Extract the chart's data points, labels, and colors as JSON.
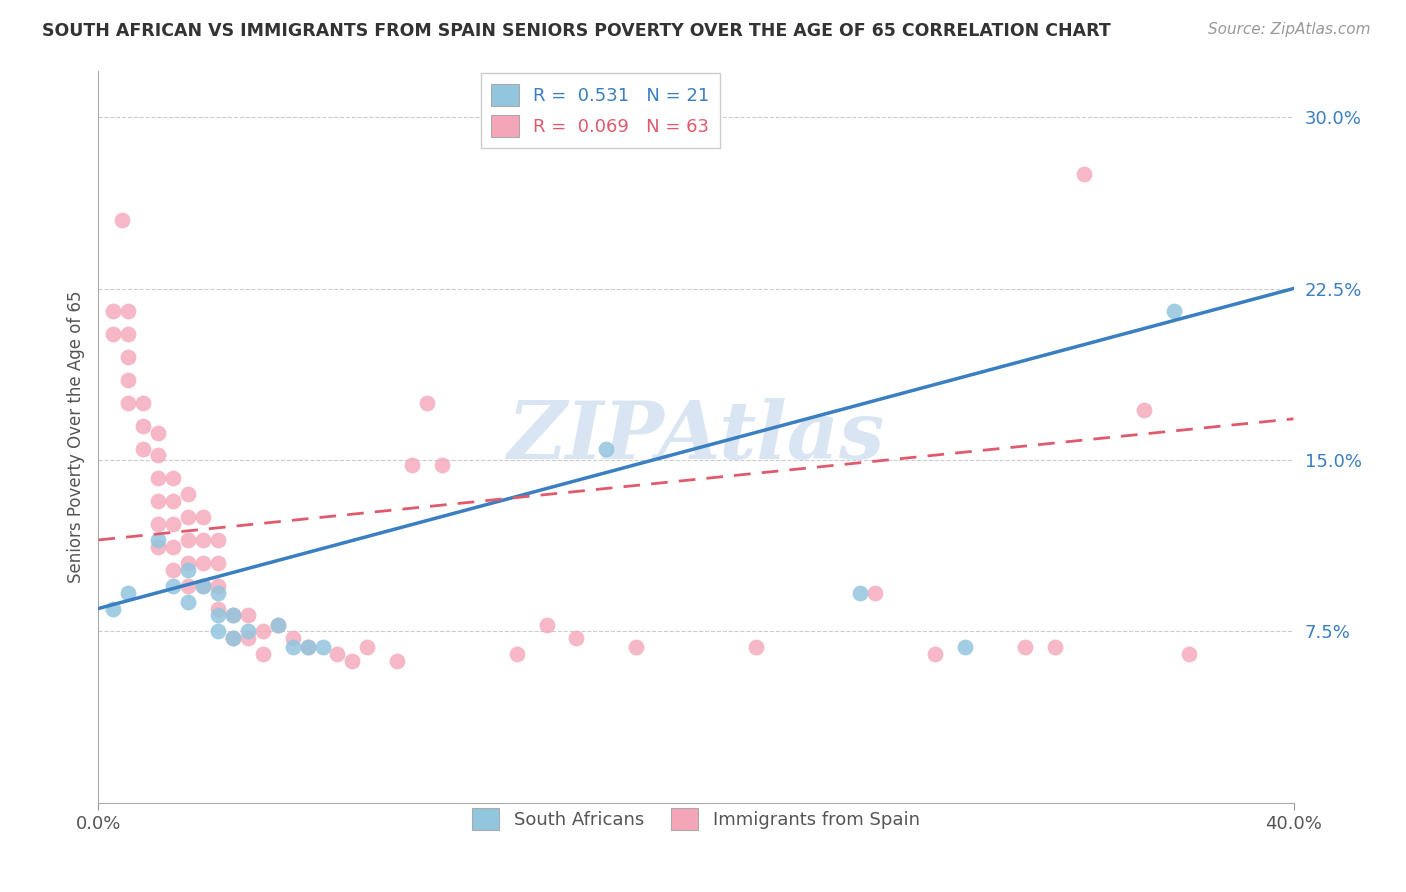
{
  "title": "SOUTH AFRICAN VS IMMIGRANTS FROM SPAIN SENIORS POVERTY OVER THE AGE OF 65 CORRELATION CHART",
  "source": "Source: ZipAtlas.com",
  "ylabel": "Seniors Poverty Over the Age of 65",
  "xlim": [
    0.0,
    0.4
  ],
  "ylim": [
    0.0,
    0.32
  ],
  "yticks": [
    0.075,
    0.15,
    0.225,
    0.3
  ],
  "ytick_labels": [
    "7.5%",
    "15.0%",
    "22.5%",
    "30.0%"
  ],
  "xtick_labels": [
    "0.0%",
    "40.0%"
  ],
  "legend_r1": "R =  0.531   N = 21",
  "legend_r2": "R =  0.069   N = 63",
  "color_blue": "#92C5DE",
  "color_pink": "#F4A6B8",
  "line_blue": "#3A7FC1",
  "line_pink": "#E05A6E",
  "blue_scatter": [
    [
      0.005,
      0.085
    ],
    [
      0.01,
      0.092
    ],
    [
      0.02,
      0.115
    ],
    [
      0.025,
      0.095
    ],
    [
      0.03,
      0.102
    ],
    [
      0.03,
      0.088
    ],
    [
      0.035,
      0.095
    ],
    [
      0.04,
      0.092
    ],
    [
      0.04,
      0.082
    ],
    [
      0.04,
      0.075
    ],
    [
      0.045,
      0.082
    ],
    [
      0.045,
      0.072
    ],
    [
      0.05,
      0.075
    ],
    [
      0.06,
      0.078
    ],
    [
      0.065,
      0.068
    ],
    [
      0.07,
      0.068
    ],
    [
      0.075,
      0.068
    ],
    [
      0.17,
      0.155
    ],
    [
      0.255,
      0.092
    ],
    [
      0.29,
      0.068
    ],
    [
      0.36,
      0.215
    ]
  ],
  "pink_scatter": [
    [
      0.005,
      0.215
    ],
    [
      0.005,
      0.205
    ],
    [
      0.008,
      0.255
    ],
    [
      0.01,
      0.215
    ],
    [
      0.01,
      0.205
    ],
    [
      0.01,
      0.195
    ],
    [
      0.01,
      0.185
    ],
    [
      0.01,
      0.175
    ],
    [
      0.015,
      0.175
    ],
    [
      0.015,
      0.165
    ],
    [
      0.015,
      0.155
    ],
    [
      0.02,
      0.162
    ],
    [
      0.02,
      0.152
    ],
    [
      0.02,
      0.142
    ],
    [
      0.02,
      0.132
    ],
    [
      0.02,
      0.122
    ],
    [
      0.02,
      0.112
    ],
    [
      0.025,
      0.142
    ],
    [
      0.025,
      0.132
    ],
    [
      0.025,
      0.122
    ],
    [
      0.025,
      0.112
    ],
    [
      0.025,
      0.102
    ],
    [
      0.03,
      0.135
    ],
    [
      0.03,
      0.125
    ],
    [
      0.03,
      0.115
    ],
    [
      0.03,
      0.105
    ],
    [
      0.03,
      0.095
    ],
    [
      0.035,
      0.125
    ],
    [
      0.035,
      0.115
    ],
    [
      0.035,
      0.105
    ],
    [
      0.035,
      0.095
    ],
    [
      0.04,
      0.115
    ],
    [
      0.04,
      0.105
    ],
    [
      0.04,
      0.095
    ],
    [
      0.04,
      0.085
    ],
    [
      0.045,
      0.082
    ],
    [
      0.045,
      0.072
    ],
    [
      0.05,
      0.082
    ],
    [
      0.05,
      0.072
    ],
    [
      0.055,
      0.075
    ],
    [
      0.055,
      0.065
    ],
    [
      0.06,
      0.078
    ],
    [
      0.065,
      0.072
    ],
    [
      0.07,
      0.068
    ],
    [
      0.08,
      0.065
    ],
    [
      0.085,
      0.062
    ],
    [
      0.09,
      0.068
    ],
    [
      0.1,
      0.062
    ],
    [
      0.105,
      0.148
    ],
    [
      0.11,
      0.175
    ],
    [
      0.115,
      0.148
    ],
    [
      0.14,
      0.065
    ],
    [
      0.15,
      0.078
    ],
    [
      0.16,
      0.072
    ],
    [
      0.18,
      0.068
    ],
    [
      0.22,
      0.068
    ],
    [
      0.26,
      0.092
    ],
    [
      0.28,
      0.065
    ],
    [
      0.31,
      0.068
    ],
    [
      0.32,
      0.068
    ],
    [
      0.33,
      0.275
    ],
    [
      0.35,
      0.172
    ],
    [
      0.365,
      0.065
    ]
  ],
  "watermark": "ZIPAtlas",
  "watermark_color": "#C0D4EC"
}
